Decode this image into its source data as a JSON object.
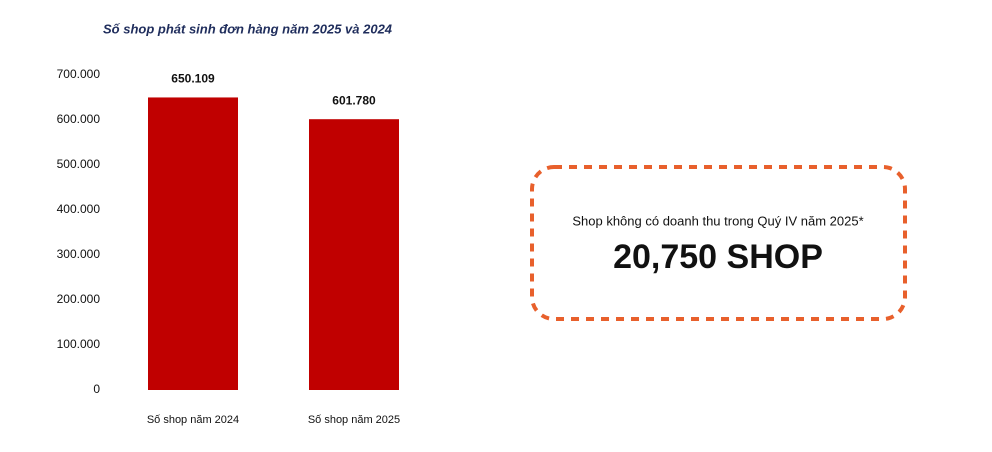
{
  "chart_data": {
    "type": "bar",
    "title": "Số shop phát sinh đơn hàng năm 2025 và 2024",
    "categories": [
      "Số shop năm 2024",
      "Số shop năm 2025"
    ],
    "values": [
      650109,
      601780
    ],
    "value_labels": [
      "650.109",
      "601.780"
    ],
    "color": "#c00000",
    "ylim": [
      0,
      700000
    ],
    "yticks": [
      0,
      {
        "value": 100000,
        "label": "100.000"
      },
      {
        "value": 200000,
        "label": "200.000"
      },
      {
        "value": 300000,
        "label": "300.000"
      },
      {
        "value": 400000,
        "label": "400.000"
      },
      {
        "value": 500000,
        "label": "500.000"
      },
      {
        "value": 600000,
        "label": "600.000"
      },
      {
        "value": 700000,
        "label": "700.000"
      }
    ],
    "grid": false
  },
  "callout": {
    "subtitle": "Shop không có doanh thu trong Quý IV năm 2025*",
    "headline": "20,750 SHOP"
  }
}
